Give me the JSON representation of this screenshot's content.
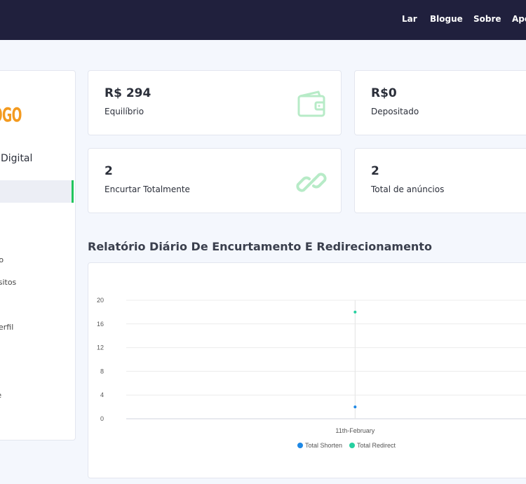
{
  "nav": {
    "items": [
      "Lar",
      "Blogue",
      "Sobre",
      "Apo"
    ]
  },
  "sidebar": {
    "logo_text": "LOGO",
    "site_name": "Digital",
    "items": [
      "iro",
      "ósitos",
      "perfil",
      "te"
    ]
  },
  "stats": [
    {
      "value": "R$ 294",
      "label": "Equilíbrio",
      "icon": "wallet-icon"
    },
    {
      "value": "R$0",
      "label": "Depositado",
      "icon": ""
    },
    {
      "value": "2",
      "label": "Encurtar Totalmente",
      "icon": "link-icon"
    },
    {
      "value": "2",
      "label": "Total de anúncios",
      "icon": ""
    }
  ],
  "report": {
    "title": "Relatório Diário De Encurtamento E Redirecionamento"
  },
  "chart_data": {
    "type": "scatter",
    "categories": [
      "11th-February"
    ],
    "series": [
      {
        "name": "Total Shorten",
        "values": [
          2
        ],
        "color": "#1e88e5"
      },
      {
        "name": "Total Redirect",
        "values": [
          18
        ],
        "color": "#26d0a0"
      }
    ],
    "yticks": [
      "0",
      "4",
      "8",
      "12",
      "16",
      "20"
    ],
    "ylim": [
      0,
      20
    ],
    "grid": true,
    "legend": "bottom-center"
  },
  "colors": {
    "topbar": "#20203d",
    "accent_green": "#22c55e",
    "icon_green": "#b7ebc7"
  }
}
